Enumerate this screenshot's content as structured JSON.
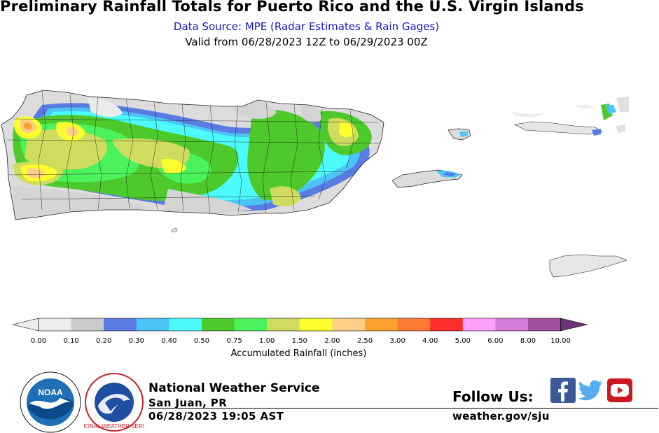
{
  "header": {
    "title": "Preliminary Rainfall Totals for Puerto Rico and the U.S. Virgin Islands",
    "source": "Data Source: MPE (Radar Estimates & Rain Gages)",
    "valid": "Valid from 06/28/2023 12Z to 06/29/2023 00Z",
    "source_color": "#1515c8"
  },
  "legend": {
    "label": "Accumulated Rainfall (inches)",
    "ticks": [
      "0.00",
      "0.10",
      "0.20",
      "0.30",
      "0.40",
      "0.50",
      "0.75",
      "1.00",
      "1.50",
      "2.00",
      "2.50",
      "3.00",
      "4.00",
      "5.00",
      "6.00",
      "8.00",
      "10.00"
    ],
    "colors": [
      "#ededed",
      "#cccccc",
      "#5a7be2",
      "#4cc4f5",
      "#4dfafb",
      "#4ec92c",
      "#4cf25c",
      "#cfdc5e",
      "#fdfe2d",
      "#fecf87",
      "#fea22f",
      "#fe7a33",
      "#fd2d2a",
      "#fea0fb",
      "#d57bd9",
      "#a250a1",
      "#6a3375"
    ]
  },
  "footer": {
    "org": "National Weather Service",
    "office": "San Juan, PR",
    "issued": "06/28/2023 19:05 AST",
    "follow": "Follow Us:",
    "website": "weather.gov/sju",
    "noaa_text": "NOAA",
    "nws_ring_text": "NATIONAL WEATHER SERVICE"
  },
  "social": {
    "facebook_color": "#3b5998",
    "twitter_color": "#55acee",
    "youtube_color": "#cc181e"
  }
}
